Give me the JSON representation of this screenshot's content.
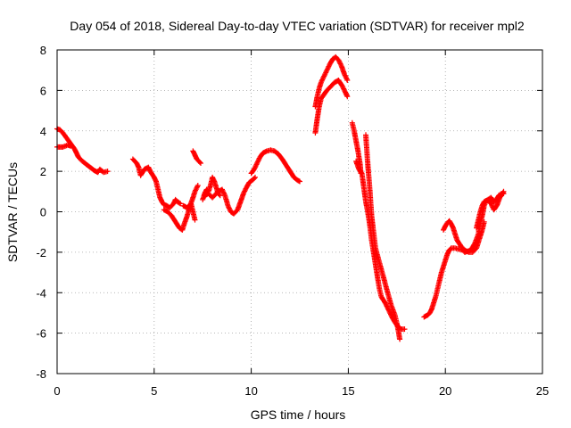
{
  "chart_data": {
    "type": "scatter",
    "title": "Day 054 of 2018, Sidereal Day-to-day VTEC variation (SDTVAR) for receiver mpl2",
    "xlabel": "GPS time / hours",
    "ylabel": "SDTVAR / TECUs",
    "xlim": [
      0,
      25
    ],
    "ylim": [
      -8,
      8
    ],
    "xticks": [
      0,
      5,
      10,
      15,
      20,
      25
    ],
    "yticks": [
      -8,
      -6,
      -4,
      -2,
      0,
      2,
      4,
      6,
      8
    ],
    "xtick_labels": [
      "0",
      "5",
      "10",
      "15",
      "20",
      "25"
    ],
    "ytick_labels": [
      "-8",
      "-6",
      "-4",
      "-2",
      "0",
      "2",
      "4",
      "6",
      "8"
    ],
    "grid": true,
    "marker": "+",
    "colors": {
      "points": "#ff0000",
      "grid": "#a0a0a0",
      "axes": "#000000"
    },
    "series": [
      {
        "segments": [
          [
            [
              0,
              3.2
            ],
            [
              0.3,
              3.2
            ],
            [
              0.55,
              3.3
            ],
            [
              0.7,
              3.25
            ]
          ],
          [
            [
              0,
              4.1
            ],
            [
              0.15,
              4.05
            ],
            [
              0.3,
              3.9
            ],
            [
              0.45,
              3.7
            ],
            [
              0.6,
              3.5
            ],
            [
              0.75,
              3.3
            ],
            [
              0.9,
              3.1
            ],
            [
              1.0,
              2.9
            ],
            [
              1.1,
              2.7
            ],
            [
              1.3,
              2.5
            ],
            [
              1.5,
              2.35
            ],
            [
              1.7,
              2.2
            ],
            [
              1.9,
              2.05
            ],
            [
              2.1,
              1.95
            ],
            [
              2.2,
              2.1
            ],
            [
              2.4,
              1.95
            ],
            [
              2.6,
              2.0
            ]
          ],
          [
            [
              3.9,
              2.6
            ],
            [
              4.1,
              2.4
            ],
            [
              4.2,
              2.2
            ],
            [
              4.3,
              1.8
            ],
            [
              4.5,
              2.1
            ],
            [
              4.7,
              2.2
            ],
            [
              4.8,
              2.0
            ],
            [
              5.0,
              1.7
            ],
            [
              5.1,
              1.5
            ],
            [
              5.2,
              1.1
            ],
            [
              5.3,
              0.7
            ],
            [
              5.4,
              0.5
            ],
            [
              5.5,
              0.35
            ],
            [
              5.65,
              0.3
            ],
            [
              5.8,
              0.2
            ],
            [
              6.0,
              0.4
            ],
            [
              6.1,
              0.6
            ],
            [
              6.2,
              0.5
            ],
            [
              6.35,
              0.4
            ]
          ],
          [
            [
              5.5,
              0.1
            ],
            [
              5.7,
              0.0
            ],
            [
              5.9,
              -0.2
            ],
            [
              6.1,
              -0.5
            ],
            [
              6.3,
              -0.8
            ],
            [
              6.45,
              -0.9
            ],
            [
              6.55,
              -0.6
            ],
            [
              6.7,
              -0.2
            ],
            [
              6.85,
              0.3
            ],
            [
              7.0,
              0.7
            ],
            [
              7.1,
              1.0
            ],
            [
              7.25,
              1.3
            ]
          ],
          [
            [
              6.5,
              0.3
            ],
            [
              6.7,
              0.2
            ],
            [
              6.9,
              0.4
            ],
            [
              7.0,
              0.0
            ],
            [
              7.1,
              -0.4
            ]
          ],
          [
            [
              7.0,
              3.0
            ],
            [
              7.1,
              2.8
            ],
            [
              7.2,
              2.6
            ],
            [
              7.3,
              2.5
            ],
            [
              7.4,
              2.4
            ]
          ],
          [
            [
              7.5,
              0.6
            ],
            [
              7.6,
              0.9
            ],
            [
              7.7,
              1.1
            ],
            [
              7.8,
              1.0
            ],
            [
              7.9,
              1.3
            ],
            [
              8.0,
              1.7
            ],
            [
              8.1,
              1.5
            ],
            [
              8.2,
              1.2
            ],
            [
              8.3,
              0.9
            ],
            [
              8.4,
              0.8
            ]
          ],
          [
            [
              7.6,
              0.8
            ],
            [
              7.8,
              0.9
            ],
            [
              8.0,
              0.7
            ],
            [
              8.3,
              1.0
            ],
            [
              8.5,
              1.1
            ],
            [
              8.65,
              0.8
            ],
            [
              8.8,
              0.3
            ],
            [
              8.95,
              0.0
            ],
            [
              9.1,
              -0.1
            ],
            [
              9.3,
              0.1
            ],
            [
              9.45,
              0.5
            ],
            [
              9.6,
              0.9
            ],
            [
              9.75,
              1.2
            ],
            [
              9.9,
              1.45
            ],
            [
              10.1,
              1.6
            ],
            [
              10.2,
              1.7
            ]
          ],
          [
            [
              10.0,
              1.9
            ],
            [
              10.15,
              2.1
            ],
            [
              10.3,
              2.4
            ],
            [
              10.45,
              2.7
            ],
            [
              10.6,
              2.9
            ],
            [
              10.8,
              3.0
            ],
            [
              11.0,
              3.05
            ],
            [
              11.2,
              3.0
            ],
            [
              11.4,
              2.85
            ],
            [
              11.6,
              2.6
            ],
            [
              11.8,
              2.3
            ],
            [
              12.0,
              2.0
            ],
            [
              12.2,
              1.7
            ],
            [
              12.4,
              1.55
            ],
            [
              12.5,
              1.5
            ]
          ],
          [
            [
              13.3,
              3.9
            ],
            [
              13.4,
              4.6
            ],
            [
              13.5,
              5.2
            ],
            [
              13.6,
              5.6
            ],
            [
              13.75,
              5.8
            ],
            [
              13.9,
              6.0
            ],
            [
              14.1,
              6.2
            ],
            [
              14.3,
              6.4
            ],
            [
              14.5,
              6.5
            ],
            [
              14.7,
              6.2
            ],
            [
              14.85,
              5.9
            ],
            [
              14.95,
              5.7
            ]
          ],
          [
            [
              13.3,
              5.2
            ],
            [
              13.4,
              5.7
            ],
            [
              13.5,
              6.1
            ],
            [
              13.6,
              6.4
            ],
            [
              13.75,
              6.7
            ],
            [
              13.9,
              7.0
            ],
            [
              14.05,
              7.3
            ],
            [
              14.2,
              7.55
            ],
            [
              14.35,
              7.65
            ],
            [
              14.5,
              7.5
            ],
            [
              14.65,
              7.2
            ],
            [
              14.8,
              6.8
            ],
            [
              14.95,
              6.5
            ]
          ],
          [
            [
              15.2,
              4.4
            ],
            [
              15.3,
              4.0
            ],
            [
              15.4,
              3.5
            ],
            [
              15.5,
              3.0
            ],
            [
              15.6,
              2.4
            ],
            [
              15.65,
              1.9
            ]
          ],
          [
            [
              15.4,
              2.5
            ],
            [
              15.55,
              2.1
            ],
            [
              15.7,
              1.9
            ],
            [
              15.8,
              1.2
            ],
            [
              15.9,
              0.5
            ],
            [
              16.0,
              0.0
            ],
            [
              16.1,
              -0.6
            ],
            [
              16.2,
              -1.4
            ],
            [
              16.3,
              -2.0
            ],
            [
              16.4,
              -2.6
            ],
            [
              16.5,
              -3.2
            ],
            [
              16.6,
              -3.8
            ],
            [
              16.7,
              -4.2
            ],
            [
              16.9,
              -4.5
            ],
            [
              17.1,
              -4.9
            ],
            [
              17.3,
              -5.3
            ],
            [
              17.5,
              -5.6
            ],
            [
              17.7,
              -5.8
            ],
            [
              17.9,
              -5.8
            ]
          ],
          [
            [
              15.9,
              3.8
            ],
            [
              16.0,
              2.4
            ],
            [
              16.1,
              1.2
            ],
            [
              16.2,
              -0.2
            ],
            [
              16.3,
              -1.0
            ],
            [
              16.4,
              -1.8
            ],
            [
              16.6,
              -2.5
            ],
            [
              16.8,
              -3.2
            ],
            [
              17.0,
              -3.9
            ],
            [
              17.2,
              -4.6
            ],
            [
              17.4,
              -5.1
            ],
            [
              17.5,
              -5.5
            ],
            [
              17.6,
              -6.0
            ],
            [
              17.65,
              -6.3
            ]
          ],
          [
            [
              18.9,
              -5.2
            ],
            [
              19.1,
              -5.1
            ],
            [
              19.2,
              -5.0
            ],
            [
              19.3,
              -4.8
            ],
            [
              19.4,
              -4.5
            ],
            [
              19.5,
              -4.2
            ],
            [
              19.6,
              -3.8
            ],
            [
              19.7,
              -3.4
            ],
            [
              19.8,
              -3.0
            ],
            [
              19.9,
              -2.7
            ],
            [
              20.0,
              -2.4
            ],
            [
              20.1,
              -2.1
            ],
            [
              20.2,
              -1.9
            ],
            [
              20.3,
              -1.8
            ],
            [
              20.5,
              -1.8
            ],
            [
              20.7,
              -1.85
            ],
            [
              20.9,
              -1.9
            ],
            [
              21.0,
              -2.0
            ]
          ],
          [
            [
              19.9,
              -0.9
            ],
            [
              20.0,
              -0.7
            ],
            [
              20.1,
              -0.55
            ],
            [
              20.2,
              -0.45
            ],
            [
              20.3,
              -0.6
            ],
            [
              20.4,
              -0.8
            ],
            [
              20.5,
              -1.1
            ],
            [
              20.6,
              -1.4
            ],
            [
              20.8,
              -1.7
            ],
            [
              21.0,
              -1.9
            ],
            [
              21.2,
              -2.0
            ],
            [
              21.4,
              -2.0
            ],
            [
              21.6,
              -1.8
            ],
            [
              21.7,
              -1.5
            ],
            [
              21.8,
              -1.2
            ],
            [
              21.9,
              -0.9
            ],
            [
              22.0,
              -0.5
            ]
          ],
          [
            [
              21.0,
              -2.0
            ],
            [
              21.3,
              -1.9
            ],
            [
              21.5,
              -1.6
            ],
            [
              21.7,
              -1.1
            ],
            [
              21.8,
              -0.5
            ],
            [
              21.9,
              -0.2
            ],
            [
              22.0,
              0.3
            ],
            [
              22.1,
              0.55
            ],
            [
              22.2,
              0.6
            ],
            [
              22.35,
              0.7
            ],
            [
              22.5,
              0.5
            ],
            [
              22.6,
              0.55
            ],
            [
              22.75,
              0.8
            ],
            [
              22.9,
              0.9
            ],
            [
              23.0,
              0.9
            ]
          ],
          [
            [
              21.6,
              -0.8
            ],
            [
              21.7,
              -0.4
            ],
            [
              21.8,
              0.0
            ],
            [
              21.9,
              0.3
            ],
            [
              22.0,
              0.5
            ],
            [
              22.2,
              0.6
            ],
            [
              22.35,
              0.4
            ],
            [
              22.5,
              0.1
            ],
            [
              22.65,
              0.3
            ],
            [
              22.8,
              0.7
            ],
            [
              23.0,
              1.0
            ]
          ]
        ]
      }
    ]
  }
}
